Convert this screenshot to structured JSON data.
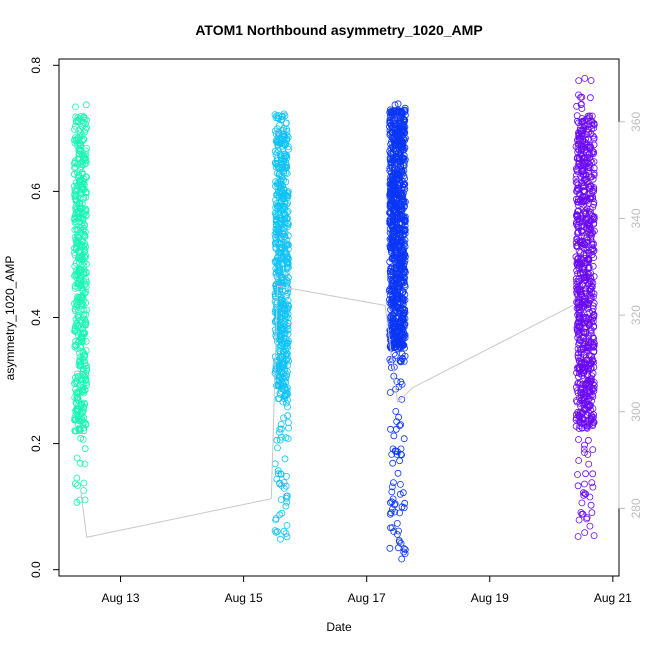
{
  "chart_data": {
    "type": "scatter",
    "title": "ATOM1 Northbound asymmetry_1020_AMP",
    "xlabel": "Date",
    "ylabel": "asymmetry_1020_AMP",
    "x_unit": "days",
    "xlim": [
      12.0,
      21.1
    ],
    "ylim": [
      -0.01,
      0.81
    ],
    "x_ticks": [
      13,
      15,
      17,
      19,
      21
    ],
    "x_tick_labels": [
      "Aug 13",
      "Aug 15",
      "Aug 17",
      "Aug 19",
      "Aug 21"
    ],
    "y_ticks": [
      0.0,
      0.2,
      0.4,
      0.6,
      0.8
    ],
    "y_tick_labels": [
      "0.0",
      "0.2",
      "0.4",
      "0.6",
      "0.8"
    ],
    "y2_ticks": [
      280,
      300,
      320,
      340,
      360
    ],
    "y2_tick_labels": [
      "280",
      "300",
      "320",
      "340",
      "360"
    ],
    "y2lim": [
      266,
      373
    ],
    "grid": false,
    "legend": "none",
    "clusters": [
      {
        "x_center": 12.35,
        "x_width": 0.2,
        "y_min": 0.06,
        "y_max": 0.74,
        "dense_min": 0.22,
        "dense_max": 0.72,
        "color": "#19f5b4",
        "n": 500
      },
      {
        "x_center": 15.62,
        "x_width": 0.22,
        "y_min": 0.04,
        "y_max": 0.74,
        "dense_min": 0.27,
        "dense_max": 0.72,
        "color": "#11c3f5",
        "n": 650
      },
      {
        "x_center": 17.5,
        "x_width": 0.26,
        "y_min": 0.01,
        "y_max": 0.74,
        "dense_min": 0.35,
        "dense_max": 0.73,
        "color": "#0b36f5",
        "n": 1000
      },
      {
        "x_center": 20.55,
        "x_width": 0.3,
        "y_min": 0.05,
        "y_max": 0.78,
        "dense_min": 0.22,
        "dense_max": 0.72,
        "color": "#6b0bf5",
        "n": 800
      }
    ],
    "line_series": {
      "color": "#c8c8c8",
      "x": [
        12.35,
        12.45,
        15.45,
        15.55,
        17.3,
        17.5,
        17.75,
        20.35
      ],
      "y2": [
        284,
        274,
        282,
        326,
        322,
        302,
        305,
        322
      ]
    }
  }
}
